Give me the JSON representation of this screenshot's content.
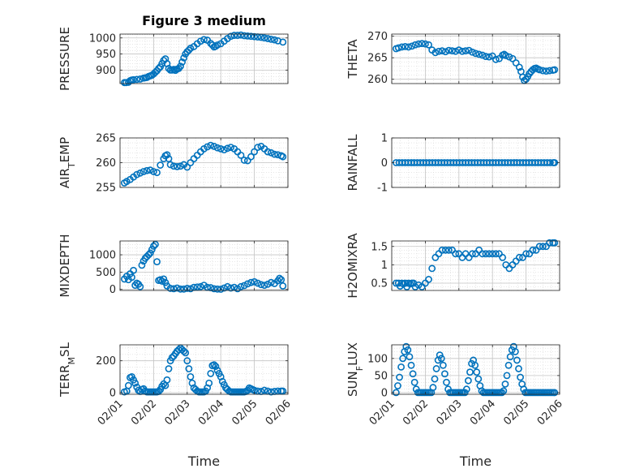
{
  "chart_data": [
    {
      "type": "scatter",
      "title": "Figure 3 medium",
      "ylabel": "PRESSURE",
      "xlabel": "",
      "xlim": [
        0,
        5
      ],
      "ylim": [
        858,
        1012
      ],
      "yticks": [
        900,
        950,
        1000
      ],
      "ytick_labels": [
        "900",
        "950",
        "1000"
      ],
      "xticks": [
        0,
        1,
        2,
        3,
        4,
        5
      ],
      "xtick_labels": [
        "02/01",
        "02/02",
        "02/03",
        "02/04",
        "02/05",
        "02/06"
      ],
      "grid": true,
      "x": [
        0.13,
        0.18,
        0.25,
        0.3,
        0.35,
        0.4,
        0.5,
        0.6,
        0.7,
        0.75,
        0.8,
        0.85,
        0.9,
        0.95,
        1.0,
        1.05,
        1.1,
        1.15,
        1.2,
        1.25,
        1.3,
        1.35,
        1.4,
        1.45,
        1.5,
        1.55,
        1.6,
        1.65,
        1.7,
        1.75,
        1.8,
        1.85,
        1.9,
        1.95,
        2.0,
        2.05,
        2.1,
        2.2,
        2.3,
        2.4,
        2.5,
        2.6,
        2.7,
        2.75,
        2.8,
        2.85,
        2.9,
        3.0,
        3.1,
        3.2,
        3.3,
        3.4,
        3.5,
        3.6,
        3.7,
        3.8,
        3.9,
        4.0,
        4.1,
        4.2,
        4.3,
        4.4,
        4.5,
        4.6,
        4.7,
        4.85
      ],
      "y": [
        861,
        861,
        862,
        867,
        869,
        870,
        871,
        872,
        875,
        876,
        877,
        880,
        882,
        884,
        888,
        893,
        898,
        905,
        910,
        920,
        930,
        935,
        920,
        905,
        900,
        900,
        902,
        899,
        903,
        905,
        912,
        925,
        938,
        950,
        957,
        962,
        968,
        973,
        982,
        990,
        995,
        993,
        983,
        978,
        972,
        974,
        978,
        982,
        990,
        998,
        1005,
        1008,
        1008,
        1009,
        1007,
        1006,
        1005,
        1004,
        1003,
        1002,
        1000,
        998,
        996,
        994,
        991,
        987
      ],
      "marker_color": "#0072BD"
    },
    {
      "type": "scatter",
      "title": "",
      "ylabel": "THETA",
      "xlabel": "",
      "xlim": [
        0,
        5
      ],
      "ylim": [
        259,
        270.5
      ],
      "yticks": [
        260,
        265,
        270
      ],
      "ytick_labels": [
        "260",
        "265",
        "270"
      ],
      "xticks": [
        0,
        1,
        2,
        3,
        4,
        5
      ],
      "xtick_labels": [
        "02/01",
        "02/02",
        "02/03",
        "02/04",
        "02/05",
        "02/06"
      ],
      "grid": true,
      "x": [
        0.13,
        0.2,
        0.3,
        0.4,
        0.5,
        0.6,
        0.7,
        0.8,
        0.9,
        1.0,
        1.1,
        1.2,
        1.3,
        1.4,
        1.5,
        1.6,
        1.7,
        1.8,
        1.9,
        2.0,
        2.1,
        2.2,
        2.3,
        2.4,
        2.5,
        2.6,
        2.7,
        2.8,
        2.9,
        3.0,
        3.1,
        3.2,
        3.3,
        3.35,
        3.4,
        3.5,
        3.6,
        3.7,
        3.8,
        3.85,
        3.9,
        3.95,
        4.0,
        4.05,
        4.1,
        4.15,
        4.2,
        4.25,
        4.3,
        4.35,
        4.4,
        4.5,
        4.6,
        4.7,
        4.8,
        4.85
      ],
      "y": [
        267.1,
        267.3,
        267.5,
        267.6,
        267.5,
        267.7,
        268.0,
        268.2,
        268.3,
        268.2,
        268.0,
        266.8,
        266.2,
        266.5,
        266.6,
        266.4,
        266.7,
        266.6,
        266.5,
        266.8,
        266.5,
        266.6,
        266.7,
        266.3,
        266.0,
        265.8,
        265.6,
        265.3,
        265.2,
        265.4,
        264.6,
        264.8,
        265.6,
        265.8,
        265.5,
        265.2,
        264.8,
        263.8,
        262.8,
        261.8,
        260.5,
        259.7,
        260.0,
        260.6,
        261.3,
        261.8,
        262.2,
        262.5,
        262.6,
        262.4,
        262.2,
        262.0,
        261.9,
        262.0,
        262.1,
        262.2
      ],
      "marker_color": "#0072BD"
    },
    {
      "type": "scatter",
      "title": "",
      "ylabel": "AIR_TEMP",
      "xlabel": "",
      "xlim": [
        0,
        5
      ],
      "ylim": [
        255,
        265
      ],
      "yticks": [
        255,
        260,
        265
      ],
      "ytick_labels": [
        "255",
        "260",
        "265"
      ],
      "xticks": [
        0,
        1,
        2,
        3,
        4,
        5
      ],
      "xtick_labels": [
        "02/01",
        "02/02",
        "02/03",
        "02/04",
        "02/05",
        "02/06"
      ],
      "grid": true,
      "x": [
        0.13,
        0.2,
        0.3,
        0.4,
        0.5,
        0.6,
        0.7,
        0.8,
        0.9,
        1.0,
        1.1,
        1.2,
        1.3,
        1.35,
        1.4,
        1.45,
        1.5,
        1.6,
        1.7,
        1.8,
        1.9,
        2.0,
        2.1,
        2.2,
        2.3,
        2.4,
        2.5,
        2.6,
        2.7,
        2.8,
        2.9,
        3.0,
        3.1,
        3.2,
        3.3,
        3.4,
        3.5,
        3.6,
        3.7,
        3.8,
        3.9,
        4.0,
        4.1,
        4.2,
        4.3,
        4.4,
        4.5,
        4.6,
        4.7,
        4.8,
        4.85
      ],
      "y": [
        255.9,
        256.2,
        256.6,
        257.1,
        257.6,
        257.9,
        258.2,
        258.4,
        258.5,
        258.2,
        258.0,
        259.5,
        260.8,
        261.4,
        261.6,
        260.8,
        259.6,
        259.3,
        259.2,
        259.3,
        259.6,
        259.1,
        260.0,
        260.8,
        261.5,
        262.2,
        262.8,
        263.2,
        263.5,
        263.3,
        263.0,
        262.8,
        262.6,
        262.9,
        263.1,
        262.8,
        262.2,
        261.5,
        260.5,
        260.4,
        261.2,
        262.2,
        263.1,
        263.3,
        262.8,
        262.2,
        262.0,
        261.7,
        261.6,
        261.4,
        261.2
      ],
      "marker_color": "#0072BD"
    },
    {
      "type": "scatter",
      "title": "",
      "ylabel": "RAINFALL",
      "xlabel": "",
      "xlim": [
        0,
        5
      ],
      "ylim": [
        -1,
        1
      ],
      "yticks": [
        -1,
        0,
        1
      ],
      "ytick_labels": [
        "-1",
        "0",
        "1"
      ],
      "xticks": [
        0,
        1,
        2,
        3,
        4,
        5
      ],
      "xtick_labels": [
        "02/01",
        "02/02",
        "02/03",
        "02/04",
        "02/05",
        "02/06"
      ],
      "grid": true,
      "x": [
        0.13,
        0.22,
        0.31,
        0.4,
        0.49,
        0.58,
        0.67,
        0.76,
        0.85,
        0.94,
        1.03,
        1.12,
        1.21,
        1.3,
        1.39,
        1.48,
        1.57,
        1.66,
        1.75,
        1.84,
        1.93,
        2.02,
        2.11,
        2.2,
        2.29,
        2.38,
        2.47,
        2.56,
        2.65,
        2.74,
        2.83,
        2.92,
        3.01,
        3.1,
        3.19,
        3.28,
        3.37,
        3.46,
        3.55,
        3.64,
        3.73,
        3.82,
        3.91,
        4.0,
        4.09,
        4.18,
        4.27,
        4.36,
        4.45,
        4.54,
        4.63,
        4.72,
        4.81,
        4.85
      ],
      "y": [
        0,
        0,
        0,
        0,
        0,
        0,
        0,
        0,
        0,
        0,
        0,
        0,
        0,
        0,
        0,
        0,
        0,
        0,
        0,
        0,
        0,
        0,
        0,
        0,
        0,
        0,
        0,
        0,
        0,
        0,
        0,
        0,
        0,
        0,
        0,
        0,
        0,
        0,
        0,
        0,
        0,
        0,
        0,
        0,
        0,
        0,
        0,
        0,
        0,
        0,
        0,
        0,
        0,
        0
      ],
      "marker_color": "#0072BD"
    },
    {
      "type": "scatter",
      "title": "",
      "ylabel": "MIXDEPTH",
      "xlabel": "",
      "xlim": [
        0,
        5
      ],
      "ylim": [
        -30,
        1400
      ],
      "yticks": [
        0,
        500,
        1000
      ],
      "ytick_labels": [
        "0",
        "500",
        "1000"
      ],
      "xticks": [
        0,
        1,
        2,
        3,
        4,
        5
      ],
      "xtick_labels": [
        "02/01",
        "02/02",
        "02/03",
        "02/04",
        "02/05",
        "02/06"
      ],
      "grid": true,
      "x": [
        0.13,
        0.2,
        0.25,
        0.3,
        0.35,
        0.4,
        0.45,
        0.5,
        0.55,
        0.6,
        0.65,
        0.7,
        0.75,
        0.8,
        0.85,
        0.9,
        0.95,
        1.0,
        1.05,
        1.1,
        1.15,
        1.2,
        1.25,
        1.3,
        1.35,
        1.4,
        1.5,
        1.6,
        1.7,
        1.8,
        1.9,
        2.0,
        2.1,
        2.2,
        2.3,
        2.4,
        2.5,
        2.6,
        2.7,
        2.8,
        2.9,
        3.0,
        3.1,
        3.2,
        3.3,
        3.4,
        3.5,
        3.6,
        3.7,
        3.8,
        3.9,
        4.0,
        4.1,
        4.2,
        4.3,
        4.4,
        4.5,
        4.6,
        4.7,
        4.75,
        4.8,
        4.85
      ],
      "y": [
        300,
        380,
        280,
        450,
        350,
        550,
        120,
        180,
        150,
        80,
        700,
        820,
        900,
        950,
        1000,
        1050,
        1150,
        1250,
        1300,
        800,
        260,
        280,
        240,
        300,
        200,
        100,
        30,
        20,
        40,
        10,
        10,
        30,
        20,
        60,
        70,
        80,
        120,
        60,
        50,
        20,
        10,
        5,
        40,
        80,
        40,
        60,
        20,
        80,
        110,
        160,
        200,
        220,
        180,
        140,
        120,
        150,
        200,
        170,
        250,
        320,
        280,
        100
      ],
      "marker_color": "#0072BD"
    },
    {
      "type": "scatter",
      "title": "",
      "ylabel": "H2OMIXRA",
      "xlabel": "",
      "xlim": [
        0,
        5
      ],
      "ylim": [
        0.3,
        1.65
      ],
      "yticks": [
        0.5,
        1,
        1.5
      ],
      "ytick_labels": [
        "0.5",
        "1",
        "1.5"
      ],
      "xticks": [
        0,
        1,
        2,
        3,
        4,
        5
      ],
      "xtick_labels": [
        "02/01",
        "02/02",
        "02/03",
        "02/04",
        "02/05",
        "02/06"
      ],
      "grid": true,
      "x": [
        0.13,
        0.2,
        0.25,
        0.3,
        0.35,
        0.4,
        0.45,
        0.5,
        0.55,
        0.6,
        0.65,
        0.7,
        0.8,
        0.9,
        1.0,
        1.1,
        1.2,
        1.3,
        1.4,
        1.5,
        1.6,
        1.7,
        1.8,
        1.9,
        2.0,
        2.1,
        2.2,
        2.3,
        2.4,
        2.5,
        2.6,
        2.7,
        2.8,
        2.9,
        3.0,
        3.1,
        3.2,
        3.3,
        3.4,
        3.5,
        3.6,
        3.7,
        3.8,
        3.9,
        4.0,
        4.1,
        4.2,
        4.3,
        4.4,
        4.5,
        4.6,
        4.7,
        4.8,
        4.85
      ],
      "y": [
        0.5,
        0.5,
        0.42,
        0.5,
        0.48,
        0.5,
        0.4,
        0.5,
        0.48,
        0.5,
        0.5,
        0.4,
        0.45,
        0.4,
        0.5,
        0.6,
        0.9,
        1.2,
        1.3,
        1.4,
        1.4,
        1.4,
        1.4,
        1.3,
        1.3,
        1.2,
        1.3,
        1.2,
        1.3,
        1.3,
        1.4,
        1.3,
        1.3,
        1.3,
        1.3,
        1.3,
        1.3,
        1.2,
        1.0,
        0.9,
        1.0,
        1.1,
        1.2,
        1.2,
        1.3,
        1.3,
        1.4,
        1.4,
        1.5,
        1.5,
        1.5,
        1.6,
        1.6,
        1.6
      ],
      "marker_color": "#0072BD"
    },
    {
      "type": "scatter",
      "title": "",
      "ylabel": "TERR_MSL",
      "xlabel": "Time",
      "xlim": [
        0,
        5
      ],
      "ylim": [
        -10,
        300
      ],
      "yticks": [
        0,
        200
      ],
      "ytick_labels": [
        "0",
        "200"
      ],
      "xticks": [
        0,
        1,
        2,
        3,
        4,
        5
      ],
      "xtick_labels": [
        "02/01",
        "02/02",
        "02/03",
        "02/04",
        "02/05",
        "02/06"
      ],
      "grid": true,
      "x": [
        0.13,
        0.2,
        0.25,
        0.3,
        0.35,
        0.4,
        0.45,
        0.5,
        0.55,
        0.6,
        0.65,
        0.7,
        0.75,
        0.8,
        0.85,
        0.9,
        0.95,
        1.0,
        1.05,
        1.1,
        1.15,
        1.2,
        1.25,
        1.3,
        1.35,
        1.4,
        1.45,
        1.5,
        1.55,
        1.6,
        1.65,
        1.7,
        1.75,
        1.8,
        1.85,
        1.9,
        1.95,
        2.0,
        2.05,
        2.1,
        2.15,
        2.2,
        2.25,
        2.3,
        2.35,
        2.4,
        2.45,
        2.5,
        2.55,
        2.6,
        2.65,
        2.7,
        2.75,
        2.8,
        2.85,
        2.9,
        2.95,
        3.0,
        3.05,
        3.1,
        3.15,
        3.2,
        3.25,
        3.3,
        3.35,
        3.4,
        3.45,
        3.5,
        3.55,
        3.6,
        3.65,
        3.7,
        3.75,
        3.8,
        3.85,
        3.9,
        3.95,
        4.0,
        4.1,
        4.2,
        4.3,
        4.4,
        4.5,
        4.6,
        4.7,
        4.8,
        4.85
      ],
      "y": [
        5,
        10,
        45,
        95,
        100,
        80,
        60,
        35,
        15,
        8,
        20,
        25,
        10,
        5,
        5,
        5,
        5,
        5,
        5,
        5,
        8,
        20,
        40,
        55,
        45,
        80,
        150,
        200,
        220,
        230,
        245,
        260,
        270,
        280,
        270,
        260,
        250,
        200,
        150,
        100,
        60,
        30,
        20,
        10,
        5,
        5,
        5,
        5,
        10,
        30,
        60,
        120,
        170,
        175,
        165,
        140,
        120,
        100,
        70,
        50,
        30,
        20,
        10,
        5,
        5,
        5,
        5,
        5,
        5,
        5,
        5,
        5,
        8,
        15,
        30,
        25,
        20,
        15,
        10,
        8,
        15,
        10,
        5,
        8,
        10,
        10,
        10
      ],
      "marker_color": "#0072BD"
    },
    {
      "type": "scatter",
      "title": "",
      "ylabel": "SUN_FLUX",
      "xlabel": "Time",
      "xlim": [
        0,
        5
      ],
      "ylim": [
        -5,
        140
      ],
      "yticks": [
        0,
        50,
        100
      ],
      "ytick_labels": [
        "0",
        "50",
        "100"
      ],
      "xticks": [
        0,
        1,
        2,
        3,
        4,
        5
      ],
      "xtick_labels": [
        "02/01",
        "02/02",
        "02/03",
        "02/04",
        "02/05",
        "02/06"
      ],
      "grid": true,
      "x": [
        0.13,
        0.18,
        0.23,
        0.28,
        0.33,
        0.38,
        0.43,
        0.48,
        0.53,
        0.58,
        0.63,
        0.68,
        0.73,
        0.78,
        0.83,
        0.88,
        0.93,
        0.98,
        1.03,
        1.08,
        1.13,
        1.18,
        1.23,
        1.28,
        1.33,
        1.38,
        1.43,
        1.48,
        1.53,
        1.58,
        1.63,
        1.68,
        1.73,
        1.78,
        1.83,
        1.88,
        1.93,
        1.98,
        2.03,
        2.08,
        2.13,
        2.18,
        2.23,
        2.28,
        2.33,
        2.38,
        2.43,
        2.48,
        2.53,
        2.58,
        2.63,
        2.68,
        2.73,
        2.78,
        2.83,
        2.88,
        2.93,
        2.98,
        3.03,
        3.08,
        3.13,
        3.18,
        3.23,
        3.28,
        3.33,
        3.38,
        3.43,
        3.48,
        3.53,
        3.58,
        3.63,
        3.68,
        3.73,
        3.78,
        3.83,
        3.88,
        3.93,
        3.98,
        4.03,
        4.08,
        4.13,
        4.18,
        4.23,
        4.28,
        4.33,
        4.38,
        4.43,
        4.48,
        4.53,
        4.58,
        4.63,
        4.68,
        4.73,
        4.78,
        4.83,
        4.85
      ],
      "y": [
        0,
        20,
        45,
        75,
        100,
        120,
        135,
        125,
        105,
        80,
        55,
        30,
        10,
        0,
        0,
        0,
        0,
        0,
        0,
        0,
        0,
        0,
        15,
        40,
        70,
        95,
        110,
        100,
        80,
        55,
        30,
        10,
        0,
        0,
        0,
        0,
        0,
        0,
        0,
        0,
        0,
        0,
        10,
        35,
        60,
        85,
        95,
        80,
        60,
        40,
        20,
        5,
        0,
        0,
        0,
        0,
        0,
        0,
        0,
        0,
        0,
        0,
        0,
        0,
        5,
        25,
        50,
        80,
        105,
        125,
        135,
        120,
        95,
        70,
        45,
        25,
        10,
        0,
        0,
        0,
        0,
        0,
        0,
        0,
        0,
        0,
        0,
        0,
        0,
        0,
        0,
        0,
        0,
        0,
        0,
        0
      ],
      "marker_color": "#0072BD"
    }
  ]
}
